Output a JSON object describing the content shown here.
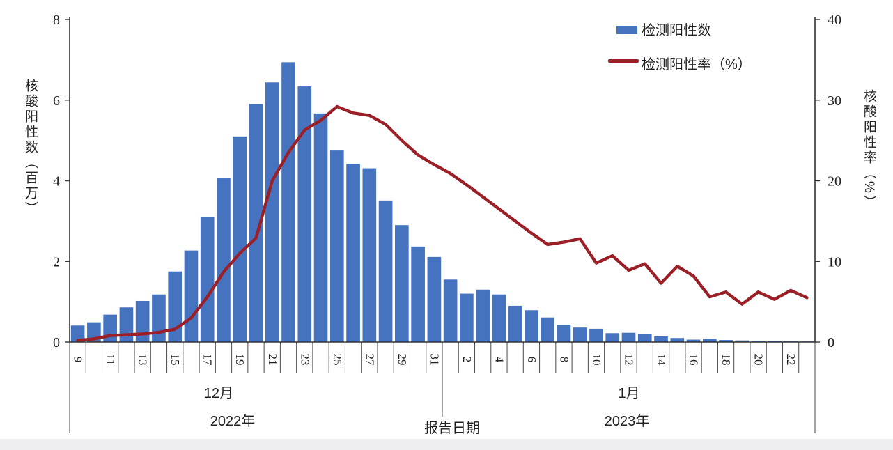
{
  "page": {
    "background": "#ffffff",
    "footer_strip_color": "#eeedf0"
  },
  "legend": {
    "items": [
      {
        "label": "检测阳性数",
        "type": "bar",
        "color": "#4673bf"
      },
      {
        "label": "检测阳性率（%）",
        "type": "line",
        "color": "#9a1f26"
      }
    ]
  },
  "axes": {
    "left": {
      "title": "核酸阳性数（百万）",
      "ticks": [
        0,
        2,
        4,
        6,
        8
      ],
      "max": 8
    },
    "right": {
      "title": "核酸阳性率（%）",
      "ticks": [
        0,
        10,
        20,
        30,
        40
      ],
      "max": 40
    },
    "x": {
      "title": "报告日期",
      "month_groups": [
        {
          "month": "12月",
          "year": "2022年"
        },
        {
          "month": "1月",
          "year": "2023年"
        }
      ]
    }
  },
  "chart_data": {
    "type": "bar",
    "combo_with_line": true,
    "title": "",
    "xlabel": "报告日期",
    "ylabel_left": "核酸阳性数（百万）",
    "ylabel_right": "核酸阳性率（%）",
    "ylim_left": [
      0,
      8
    ],
    "ylim_right": [
      0,
      40
    ],
    "grid": false,
    "legend_position": "top-right",
    "categories": [
      "12-9",
      "12-10",
      "12-11",
      "12-12",
      "12-13",
      "12-14",
      "12-15",
      "12-16",
      "12-17",
      "12-18",
      "12-19",
      "12-20",
      "12-21",
      "12-22",
      "12-23",
      "12-24",
      "12-25",
      "12-26",
      "12-27",
      "12-28",
      "12-29",
      "12-30",
      "12-31",
      "1-1",
      "1-2",
      "1-3",
      "1-4",
      "1-5",
      "1-6",
      "1-7",
      "1-8",
      "1-9",
      "1-10",
      "1-11",
      "1-12",
      "1-13",
      "1-14",
      "1-15",
      "1-16",
      "1-17",
      "1-18",
      "1-19",
      "1-20",
      "1-21",
      "1-22",
      "1-23"
    ],
    "shown_x_tick_labels": [
      "9",
      "11",
      "13",
      "15",
      "17",
      "19",
      "21",
      "23",
      "25",
      "27",
      "29",
      "31",
      "2",
      "4",
      "6",
      "8",
      "10",
      "12",
      "14",
      "16",
      "18",
      "20",
      "22"
    ],
    "series": [
      {
        "name": "检测阳性数",
        "type": "bar",
        "yaxis": "left",
        "color": "#4673bf",
        "values": [
          0.41,
          0.49,
          0.68,
          0.86,
          1.02,
          1.18,
          1.75,
          2.27,
          3.1,
          4.06,
          5.1,
          5.9,
          6.44,
          6.94,
          6.34,
          5.67,
          4.75,
          4.42,
          4.31,
          3.51,
          2.9,
          2.37,
          2.11,
          1.55,
          1.2,
          1.3,
          1.18,
          0.9,
          0.79,
          0.61,
          0.43,
          0.36,
          0.33,
          0.22,
          0.23,
          0.19,
          0.14,
          0.1,
          0.06,
          0.08,
          0.05,
          0.04,
          0.03,
          0.025,
          0.02,
          0.015
        ]
      },
      {
        "name": "检测阳性率（%）",
        "type": "line",
        "yaxis": "right",
        "color": "#9a1f26",
        "values": [
          0.2,
          0.4,
          0.8,
          0.9,
          1.0,
          1.2,
          1.6,
          3.0,
          5.6,
          8.7,
          11.0,
          12.9,
          20.0,
          23.5,
          26.3,
          27.5,
          29.2,
          28.4,
          28.1,
          27.0,
          25.0,
          23.2,
          22.0,
          20.9,
          19.5,
          18.0,
          16.5,
          15.0,
          13.5,
          12.1,
          12.4,
          12.8,
          9.8,
          10.7,
          8.9,
          9.7,
          7.3,
          9.4,
          8.2,
          5.6,
          6.2,
          4.7,
          6.2,
          5.3,
          6.4,
          5.5
        ]
      }
    ]
  }
}
